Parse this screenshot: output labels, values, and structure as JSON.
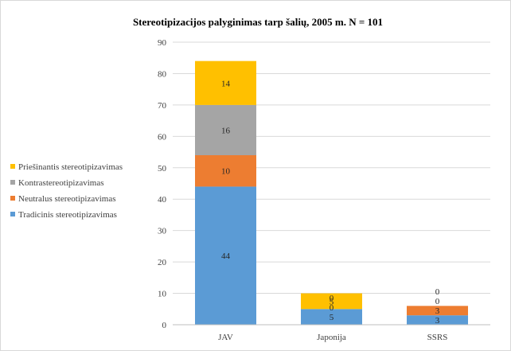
{
  "chart_data": {
    "type": "bar",
    "stacked": true,
    "title": "Stereotipizacijos palyginimas tarp šalių, 2005 m. N = 101",
    "xlabel": "",
    "ylabel": "",
    "categories": [
      "JAV",
      "Japonija",
      "SSRS"
    ],
    "ylim": [
      0,
      90
    ],
    "yticks": [
      0,
      10,
      20,
      30,
      40,
      50,
      60,
      70,
      80,
      90
    ],
    "grid": true,
    "legend_position": "left",
    "series": [
      {
        "name": "Tradicinis stereotipizavimas",
        "values": [
          44,
          5,
          3
        ],
        "color": "#5b9bd5"
      },
      {
        "name": "Neutralus stereotipizavimas",
        "values": [
          10,
          0,
          3
        ],
        "color": "#ed7d31"
      },
      {
        "name": "Kontrastereotipizavimas",
        "values": [
          16,
          0,
          0
        ],
        "color": "#a5a5a5"
      },
      {
        "name": "Priešinantis stereotipizavimas",
        "values": [
          14,
          5,
          0
        ],
        "color": "#ffc000"
      }
    ],
    "legend_order": [
      3,
      2,
      1,
      0
    ]
  }
}
